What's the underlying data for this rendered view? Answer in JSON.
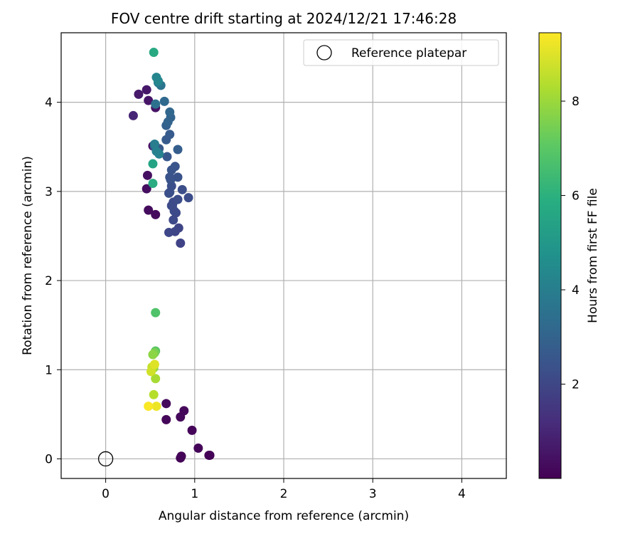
{
  "chart_data": {
    "type": "scatter",
    "title": "FOV centre drift starting at 2024/12/21 17:46:28",
    "xlabel": "Angular distance from reference (arcmin)",
    "ylabel": "Rotation from reference (arcmin)",
    "xlim": [
      -0.5,
      4.5
    ],
    "ylim": [
      -0.22,
      4.78
    ],
    "xticks": [
      0,
      1,
      2,
      3,
      4
    ],
    "yticks": [
      0,
      1,
      2,
      3,
      4
    ],
    "grid": true,
    "legend": {
      "placement": "top-right",
      "entries": [
        "Reference platepar"
      ]
    },
    "reference_point": {
      "x": 0,
      "y": 0,
      "label": "Reference platepar"
    },
    "colorbar": {
      "label": "Hours from first FF file",
      "colormap": "viridis",
      "range": [
        0.0,
        9.45
      ],
      "ticks": [
        2,
        4,
        6,
        8
      ]
    },
    "series": [
      {
        "x": [
          1.17,
          1.16,
          0.85,
          0.84,
          1.04,
          0.97,
          0.68,
          0.84,
          0.88,
          0.68,
          0.56,
          0.48,
          0.46,
          0.47,
          0.53,
          0.56,
          0.48,
          0.46,
          0.37,
          0.31,
          0.84,
          0.82,
          0.78,
          0.71,
          0.76,
          0.79,
          0.77,
          0.74,
          0.75,
          0.76,
          0.81,
          0.93,
          0.86,
          0.71,
          0.72,
          0.74,
          0.81,
          0.73,
          0.72,
          0.74,
          0.78,
          0.69,
          0.6,
          0.55,
          0.68,
          0.72,
          0.81,
          0.68,
          0.7,
          0.73,
          0.72,
          0.66,
          0.56,
          0.62,
          0.59,
          0.55,
          0.57,
          0.6,
          0.57,
          0.59,
          0.53,
          0.53,
          0.54,
          0.56,
          0.56,
          0.55,
          0.53,
          0.54,
          0.56,
          0.54,
          0.52,
          0.51,
          0.55,
          0.57,
          0.48
        ],
        "y": [
          0.04,
          0.04,
          0.03,
          0.01,
          0.12,
          0.32,
          0.44,
          0.47,
          0.54,
          0.62,
          2.74,
          2.79,
          3.03,
          3.18,
          3.51,
          3.94,
          4.02,
          4.14,
          4.09,
          3.85,
          2.42,
          2.59,
          2.55,
          2.54,
          2.68,
          2.76,
          2.78,
          2.84,
          2.84,
          2.88,
          2.91,
          2.93,
          3.02,
          2.98,
          2.99,
          3.06,
          3.16,
          3.13,
          3.16,
          3.24,
          3.28,
          3.39,
          3.48,
          3.5,
          3.58,
          3.64,
          3.47,
          3.74,
          3.78,
          3.83,
          3.89,
          4.01,
          3.98,
          4.19,
          4.22,
          3.53,
          3.45,
          3.42,
          4.28,
          4.24,
          3.31,
          3.09,
          4.56,
          1.64,
          1.21,
          1.19,
          1.17,
          1.02,
          0.9,
          0.72,
          1.03,
          0.98,
          1.06,
          0.59,
          0.59
        ],
        "hours": [
          0.02,
          0.05,
          0.07,
          0.09,
          0.11,
          0.14,
          0.16,
          0.18,
          0.2,
          0.23,
          0.25,
          0.3,
          0.35,
          0.4,
          0.45,
          0.5,
          0.55,
          0.6,
          0.65,
          1.0,
          1.9,
          1.95,
          2.0,
          2.05,
          2.1,
          2.1,
          2.15,
          2.15,
          2.2,
          2.2,
          2.25,
          2.25,
          2.3,
          2.3,
          2.35,
          2.35,
          2.4,
          2.4,
          2.45,
          2.5,
          2.5,
          2.6,
          2.6,
          2.6,
          2.7,
          2.7,
          2.8,
          2.9,
          3.0,
          3.0,
          3.1,
          3.2,
          3.5,
          3.6,
          3.9,
          4.0,
          4.1,
          4.2,
          4.3,
          4.4,
          5.5,
          5.8,
          5.7,
          6.8,
          7.0,
          7.5,
          7.8,
          8.0,
          8.2,
          8.4,
          8.6,
          8.8,
          9.0,
          9.2,
          9.4
        ]
      }
    ]
  }
}
